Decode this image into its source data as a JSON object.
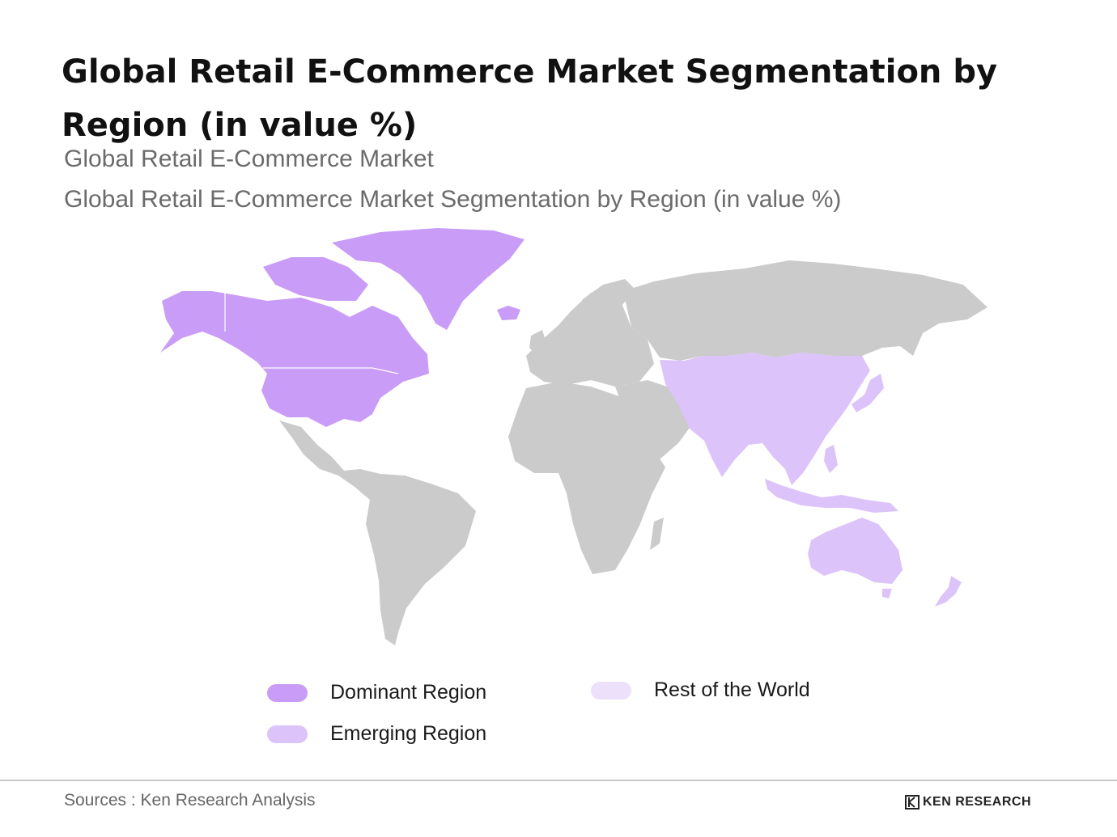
{
  "title": "Global Retail E-Commerce Market Segmentation by Region (in value %)",
  "subtitle_1": "Global Retail E-Commerce Market",
  "subtitle_2": "Global Retail E-Commerce Market Segmentation by Region (in value %)",
  "colors": {
    "dominant": "#c99cf7",
    "emerging": "#dcc3f9",
    "rest_of_world": "#ece0fb",
    "land_grey": "#cbcbcb"
  },
  "legend": [
    {
      "label": "Dominant Region",
      "color": "#c99cf7"
    },
    {
      "label": "Emerging Region",
      "color": "#dcc3f9"
    },
    {
      "label": "Rest of the World",
      "color": "#ece0fb"
    }
  ],
  "regions": {
    "dominant": [
      "North America",
      "Greenland"
    ],
    "emerging": [
      "Asia",
      "Oceania"
    ],
    "grey": [
      "Europe",
      "Russia",
      "Middle East",
      "Africa",
      "Latin America"
    ]
  },
  "footer": {
    "sources": "Sources : Ken Research Analysis",
    "brand": "KEN RESEARCH"
  }
}
